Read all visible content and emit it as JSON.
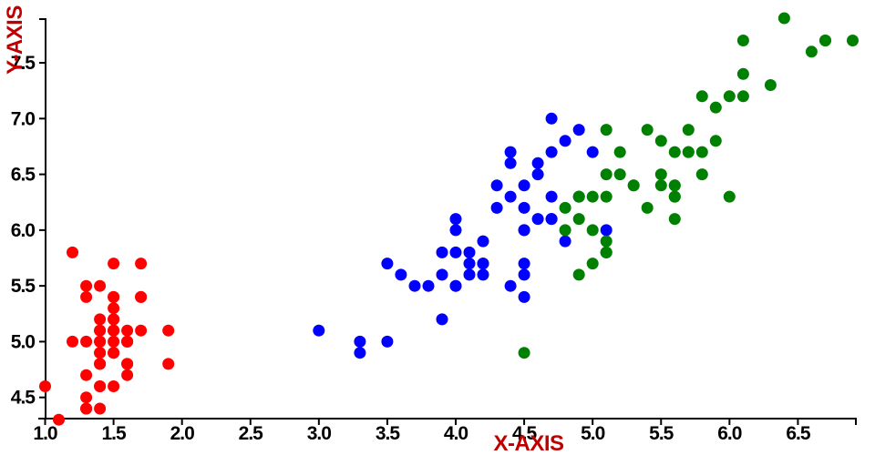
{
  "page": {
    "background": "#ffffff"
  },
  "chart_data": {
    "type": "scatter",
    "title": "",
    "xlabel": "X-AXIS",
    "ylabel": "Y-AXIS",
    "grid": false,
    "legend": null,
    "axis_color": "#000000",
    "tick_label_color": "#000000",
    "label_color": "#c00000",
    "xlim": [
      0.95,
      6.93
    ],
    "ylim": [
      4.31,
      7.9
    ],
    "x_ticks": {
      "values": [
        1.0,
        1.5,
        2.0,
        2.5,
        3.0,
        3.5,
        4.0,
        4.5,
        5.0,
        5.5,
        6.0,
        6.5
      ],
      "labels": [
        "1.0",
        "1.5",
        "2.0",
        "2.5",
        "3.0",
        "3.5",
        "4.0",
        "4.5",
        "5.0",
        "5.5",
        "6.0",
        "6.5"
      ]
    },
    "y_ticks": {
      "values": [
        4.5,
        5.0,
        5.5,
        6.0,
        6.5,
        7.0,
        7.5
      ],
      "labels": [
        "4.5",
        "5.0",
        "5.5",
        "6.0",
        "6.5",
        "7.0",
        "7.5"
      ]
    },
    "marker": {
      "shape": "circle",
      "radius_px": 6.5
    },
    "series": [
      {
        "name": "red",
        "color": "#ff0000",
        "points": [
          [
            1.4,
            5.1
          ],
          [
            1.4,
            4.9
          ],
          [
            1.3,
            4.7
          ],
          [
            1.5,
            4.6
          ],
          [
            1.4,
            5.0
          ],
          [
            1.7,
            5.4
          ],
          [
            1.4,
            4.6
          ],
          [
            1.5,
            5.0
          ],
          [
            1.4,
            4.4
          ],
          [
            1.5,
            4.9
          ],
          [
            1.5,
            5.4
          ],
          [
            1.6,
            4.8
          ],
          [
            1.4,
            4.8
          ],
          [
            1.1,
            4.3
          ],
          [
            1.2,
            5.8
          ],
          [
            1.5,
            5.7
          ],
          [
            1.3,
            5.4
          ],
          [
            1.4,
            5.1
          ],
          [
            1.7,
            5.7
          ],
          [
            1.5,
            5.1
          ],
          [
            1.7,
            5.4
          ],
          [
            1.5,
            5.1
          ],
          [
            1.0,
            4.6
          ],
          [
            1.7,
            5.1
          ],
          [
            1.9,
            4.8
          ],
          [
            1.6,
            5.0
          ],
          [
            1.6,
            5.0
          ],
          [
            1.5,
            5.2
          ],
          [
            1.4,
            5.2
          ],
          [
            1.6,
            4.7
          ],
          [
            1.6,
            4.8
          ],
          [
            1.5,
            5.4
          ],
          [
            1.5,
            5.2
          ],
          [
            1.4,
            5.5
          ],
          [
            1.5,
            4.9
          ],
          [
            1.2,
            5.0
          ],
          [
            1.3,
            5.5
          ],
          [
            1.4,
            4.9
          ],
          [
            1.3,
            4.4
          ],
          [
            1.5,
            5.1
          ],
          [
            1.3,
            5.0
          ],
          [
            1.3,
            4.5
          ],
          [
            1.3,
            4.4
          ],
          [
            1.6,
            5.0
          ],
          [
            1.9,
            5.1
          ],
          [
            1.4,
            4.8
          ],
          [
            1.6,
            5.1
          ],
          [
            1.4,
            4.6
          ],
          [
            1.5,
            5.3
          ],
          [
            1.4,
            5.0
          ]
        ]
      },
      {
        "name": "blue",
        "color": "#0000ff",
        "points": [
          [
            4.7,
            7.0
          ],
          [
            4.5,
            6.4
          ],
          [
            4.9,
            6.9
          ],
          [
            4.0,
            5.5
          ],
          [
            4.6,
            6.5
          ],
          [
            4.5,
            5.7
          ],
          [
            4.7,
            6.3
          ],
          [
            3.3,
            4.9
          ],
          [
            4.6,
            6.6
          ],
          [
            3.9,
            5.2
          ],
          [
            3.5,
            5.0
          ],
          [
            4.2,
            5.9
          ],
          [
            4.0,
            6.0
          ],
          [
            4.7,
            6.1
          ],
          [
            3.6,
            5.6
          ],
          [
            4.4,
            6.7
          ],
          [
            4.5,
            5.6
          ],
          [
            4.1,
            5.8
          ],
          [
            4.5,
            6.2
          ],
          [
            3.9,
            5.6
          ],
          [
            4.8,
            5.9
          ],
          [
            4.0,
            6.1
          ],
          [
            4.9,
            6.3
          ],
          [
            4.7,
            6.1
          ],
          [
            4.3,
            6.4
          ],
          [
            4.4,
            6.6
          ],
          [
            4.8,
            6.8
          ],
          [
            5.0,
            6.7
          ],
          [
            4.5,
            6.0
          ],
          [
            3.5,
            5.7
          ],
          [
            3.8,
            5.5
          ],
          [
            3.7,
            5.5
          ],
          [
            3.9,
            5.8
          ],
          [
            5.1,
            6.0
          ],
          [
            4.5,
            5.4
          ],
          [
            4.5,
            6.0
          ],
          [
            4.7,
            6.7
          ],
          [
            4.4,
            6.3
          ],
          [
            4.1,
            5.6
          ],
          [
            4.0,
            5.5
          ],
          [
            4.4,
            5.5
          ],
          [
            4.6,
            6.1
          ],
          [
            4.0,
            5.8
          ],
          [
            3.3,
            5.0
          ],
          [
            4.2,
            5.6
          ],
          [
            4.2,
            5.7
          ],
          [
            4.2,
            5.7
          ],
          [
            4.3,
            6.2
          ],
          [
            3.0,
            5.1
          ],
          [
            4.1,
            5.7
          ]
        ]
      },
      {
        "name": "green",
        "color": "#008000",
        "points": [
          [
            6.0,
            6.3
          ],
          [
            5.1,
            5.8
          ],
          [
            5.9,
            7.1
          ],
          [
            5.6,
            6.3
          ],
          [
            5.8,
            6.5
          ],
          [
            6.6,
            7.6
          ],
          [
            4.5,
            4.9
          ],
          [
            6.3,
            7.3
          ],
          [
            5.8,
            6.7
          ],
          [
            6.1,
            7.2
          ],
          [
            5.1,
            6.5
          ],
          [
            5.3,
            6.4
          ],
          [
            5.5,
            6.8
          ],
          [
            5.0,
            5.7
          ],
          [
            5.1,
            5.8
          ],
          [
            5.3,
            6.4
          ],
          [
            5.5,
            6.5
          ],
          [
            6.7,
            7.7
          ],
          [
            6.9,
            7.7
          ],
          [
            5.0,
            6.0
          ],
          [
            5.7,
            6.9
          ],
          [
            4.9,
            5.6
          ],
          [
            6.7,
            7.7
          ],
          [
            4.9,
            6.3
          ],
          [
            5.7,
            6.7
          ],
          [
            6.0,
            7.2
          ],
          [
            4.8,
            6.2
          ],
          [
            4.9,
            6.1
          ],
          [
            5.6,
            6.4
          ],
          [
            5.8,
            7.2
          ],
          [
            6.1,
            7.4
          ],
          [
            6.4,
            7.9
          ],
          [
            5.6,
            6.4
          ],
          [
            5.1,
            6.3
          ],
          [
            5.6,
            6.1
          ],
          [
            6.1,
            7.7
          ],
          [
            5.6,
            6.3
          ],
          [
            5.5,
            6.4
          ],
          [
            4.8,
            6.0
          ],
          [
            5.4,
            6.9
          ],
          [
            5.6,
            6.7
          ],
          [
            5.1,
            6.9
          ],
          [
            5.1,
            5.8
          ],
          [
            5.9,
            6.8
          ],
          [
            5.7,
            6.7
          ],
          [
            5.2,
            6.7
          ],
          [
            5.0,
            6.3
          ],
          [
            5.2,
            6.5
          ],
          [
            5.4,
            6.2
          ],
          [
            5.1,
            5.9
          ]
        ]
      }
    ]
  }
}
